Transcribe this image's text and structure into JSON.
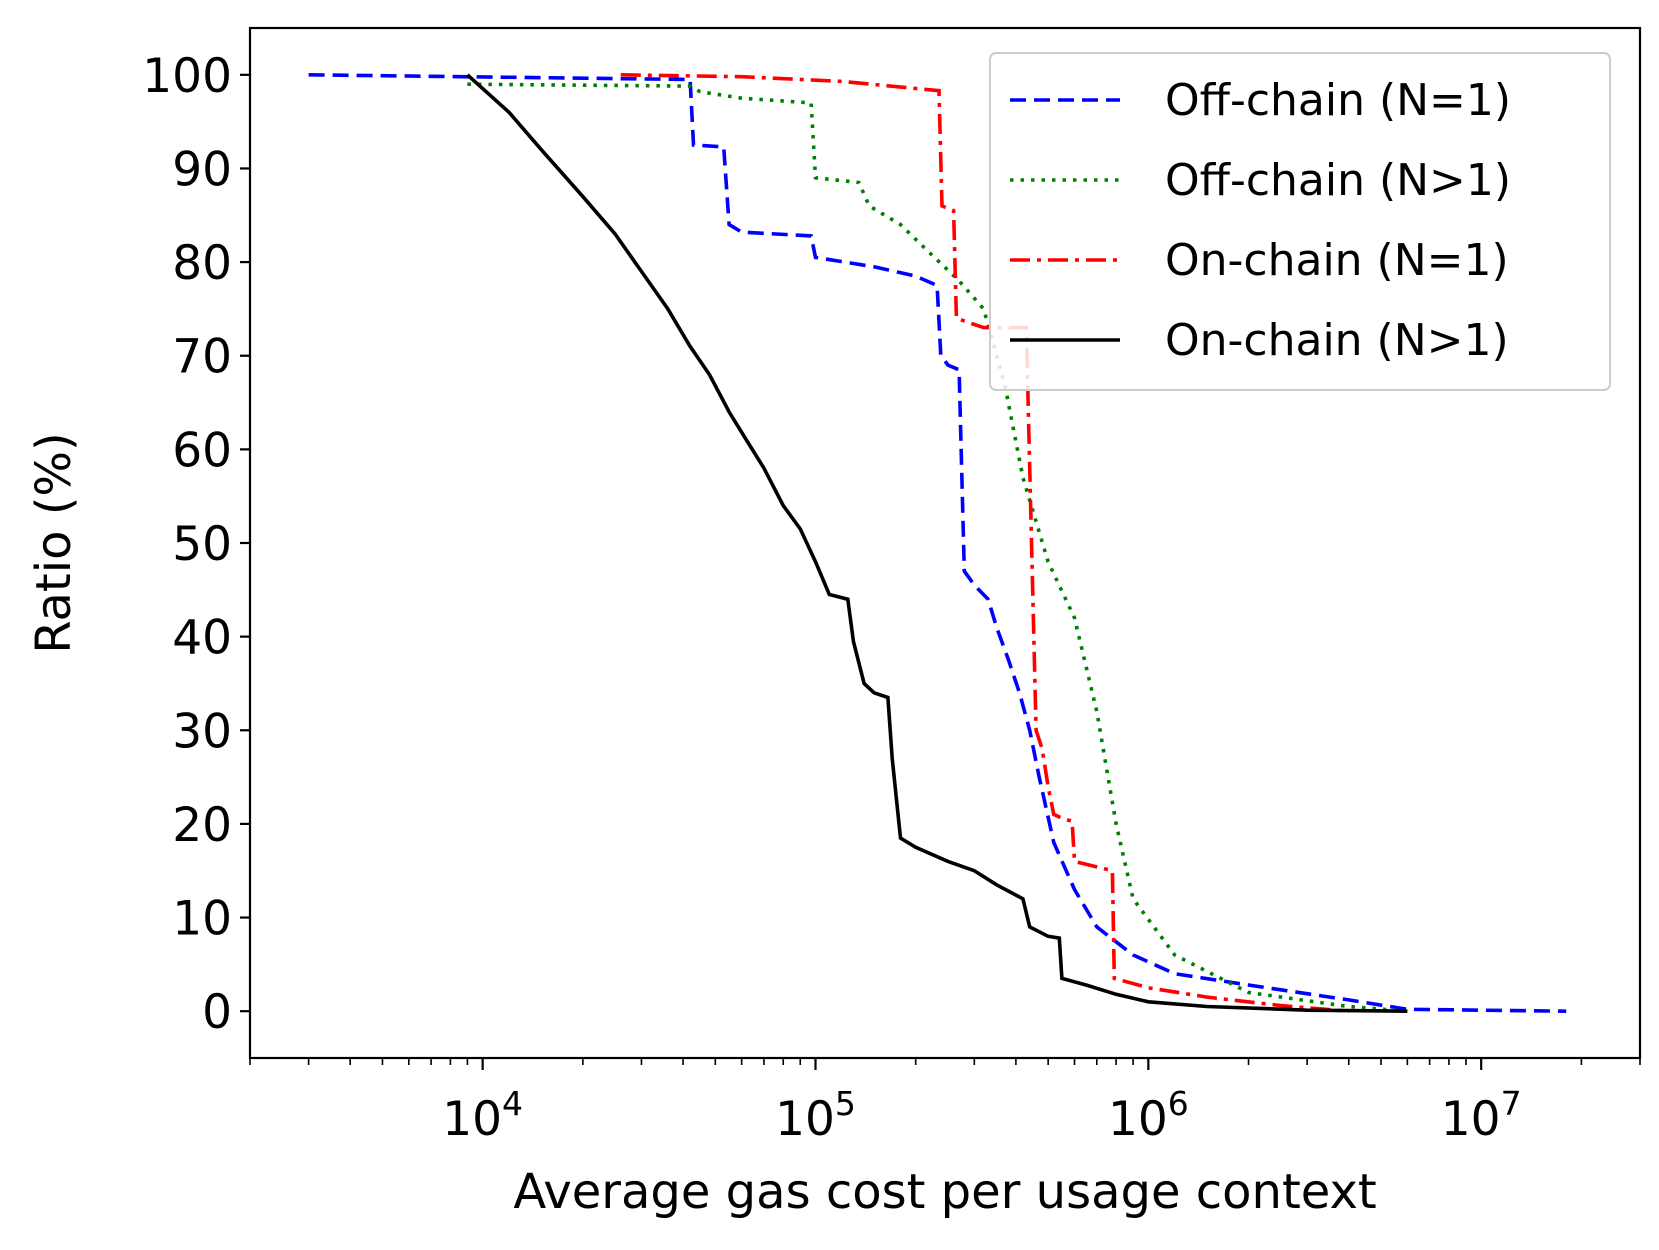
{
  "chart_data": {
    "type": "line",
    "title": "",
    "xlabel": "Average gas cost per usage context",
    "ylabel": "Ratio (%)",
    "x_scale": "log",
    "xlim": [
      2000,
      30000000
    ],
    "ylim": [
      -5,
      105
    ],
    "x_ticks": [
      {
        "value": 10000,
        "base": "10",
        "exp": "4"
      },
      {
        "value": 100000,
        "base": "10",
        "exp": "5"
      },
      {
        "value": 1000000,
        "base": "10",
        "exp": "6"
      },
      {
        "value": 10000000,
        "base": "10",
        "exp": "7"
      }
    ],
    "y_ticks": [
      0,
      10,
      20,
      30,
      40,
      50,
      60,
      70,
      80,
      90,
      100
    ],
    "grid": false,
    "legend_position": "top-right",
    "series": [
      {
        "name": "Off-chain (N=1)",
        "color": "#0000ff",
        "style": "dashed",
        "points": [
          [
            3000,
            100
          ],
          [
            42000,
            99.5
          ],
          [
            43000,
            92.5
          ],
          [
            53000,
            92.3
          ],
          [
            55000,
            84
          ],
          [
            60000,
            83.2
          ],
          [
            97000,
            82.8
          ],
          [
            100000,
            80.5
          ],
          [
            150000,
            79.5
          ],
          [
            200000,
            78.5
          ],
          [
            232000,
            77.5
          ],
          [
            238000,
            70
          ],
          [
            250000,
            69
          ],
          [
            270000,
            68.5
          ],
          [
            280000,
            47
          ],
          [
            300000,
            45.5
          ],
          [
            330000,
            44
          ],
          [
            350000,
            41
          ],
          [
            380000,
            37.5
          ],
          [
            410000,
            34
          ],
          [
            440000,
            30
          ],
          [
            470000,
            25
          ],
          [
            520000,
            18
          ],
          [
            600000,
            13
          ],
          [
            700000,
            9
          ],
          [
            900000,
            6
          ],
          [
            1200000,
            4
          ],
          [
            2000000,
            2.8
          ],
          [
            4000000,
            1.2
          ],
          [
            6000000,
            0.2
          ],
          [
            18000000,
            0
          ]
        ]
      },
      {
        "name": "Off-chain (N>1)",
        "color": "#008000",
        "style": "dotted",
        "points": [
          [
            9000,
            99
          ],
          [
            42000,
            98.8
          ],
          [
            45000,
            98.2
          ],
          [
            60000,
            97.5
          ],
          [
            97000,
            97
          ],
          [
            100000,
            89
          ],
          [
            135000,
            88.5
          ],
          [
            145000,
            86
          ],
          [
            180000,
            84
          ],
          [
            220000,
            81
          ],
          [
            270000,
            78
          ],
          [
            320000,
            75
          ],
          [
            370000,
            67
          ],
          [
            420000,
            57
          ],
          [
            500000,
            48
          ],
          [
            600000,
            42
          ],
          [
            700000,
            32
          ],
          [
            800000,
            20
          ],
          [
            900000,
            12
          ],
          [
            1200000,
            6
          ],
          [
            2000000,
            2
          ],
          [
            4000000,
            0.5
          ],
          [
            6000000,
            0
          ]
        ]
      },
      {
        "name": "On-chain (N=1)",
        "color": "#ff0000",
        "style": "dashdot",
        "points": [
          [
            26000,
            100
          ],
          [
            60000,
            99.8
          ],
          [
            120000,
            99.3
          ],
          [
            235000,
            98.3
          ],
          [
            240000,
            86
          ],
          [
            260000,
            85.5
          ],
          [
            265000,
            74
          ],
          [
            320000,
            73
          ],
          [
            430000,
            73
          ],
          [
            460000,
            30
          ],
          [
            480000,
            28
          ],
          [
            500000,
            24
          ],
          [
            520000,
            21
          ],
          [
            560000,
            20.5
          ],
          [
            590000,
            20.3
          ],
          [
            600000,
            16
          ],
          [
            780000,
            15
          ],
          [
            790000,
            3.5
          ],
          [
            1000000,
            2.5
          ],
          [
            1500000,
            1.5
          ],
          [
            2500000,
            0.6
          ],
          [
            4000000,
            0
          ]
        ]
      },
      {
        "name": "On-chain (N>1)",
        "color": "#000000",
        "style": "solid",
        "points": [
          [
            9000,
            100
          ],
          [
            12000,
            96
          ],
          [
            15000,
            92
          ],
          [
            20000,
            87
          ],
          [
            25000,
            83
          ],
          [
            30000,
            79
          ],
          [
            36000,
            75
          ],
          [
            42000,
            71
          ],
          [
            48000,
            68
          ],
          [
            55000,
            64
          ],
          [
            62000,
            61
          ],
          [
            70000,
            58
          ],
          [
            80000,
            54
          ],
          [
            90000,
            51.5
          ],
          [
            100000,
            48
          ],
          [
            110000,
            44.5
          ],
          [
            125000,
            44
          ],
          [
            130000,
            39.5
          ],
          [
            140000,
            35
          ],
          [
            150000,
            34
          ],
          [
            165000,
            33.5
          ],
          [
            170000,
            27
          ],
          [
            180000,
            18.5
          ],
          [
            200000,
            17.5
          ],
          [
            250000,
            16
          ],
          [
            300000,
            15
          ],
          [
            350000,
            13.5
          ],
          [
            420000,
            12
          ],
          [
            440000,
            9
          ],
          [
            500000,
            8
          ],
          [
            540000,
            7.8
          ],
          [
            550000,
            3.5
          ],
          [
            650000,
            2.8
          ],
          [
            800000,
            1.8
          ],
          [
            1000000,
            1
          ],
          [
            1500000,
            0.5
          ],
          [
            3000000,
            0.1
          ],
          [
            6000000,
            0
          ]
        ]
      }
    ]
  }
}
